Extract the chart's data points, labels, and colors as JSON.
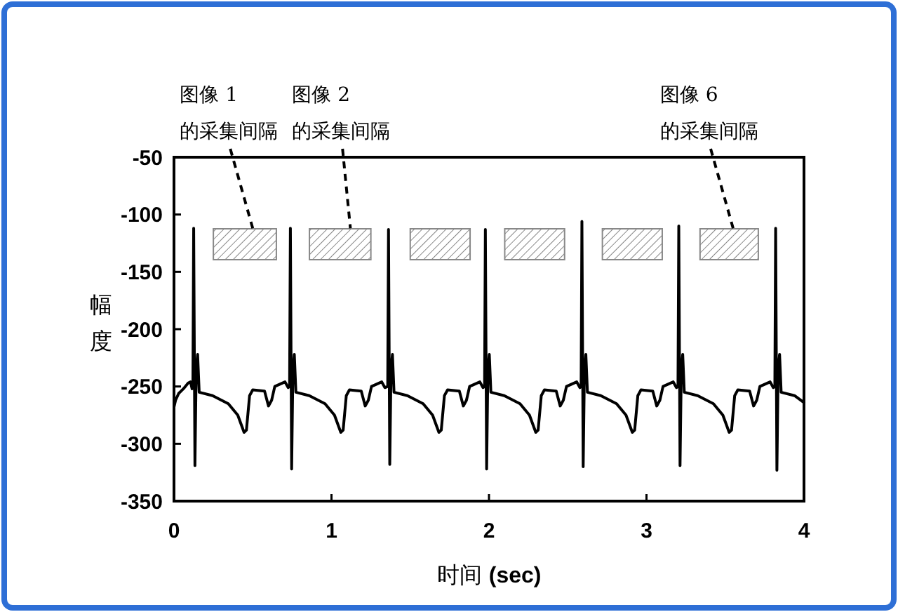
{
  "chart_data": {
    "type": "line",
    "xlabel": "时间 (sec)",
    "ylabel": "幅度",
    "xlim": [
      0,
      4
    ],
    "xticks": [
      0,
      1,
      2,
      3,
      4
    ],
    "ylim": [
      -350,
      -50
    ],
    "yticks": [
      -350,
      -300,
      -250,
      -200,
      -150,
      -100,
      -50
    ],
    "grid": false,
    "marker": "none",
    "line_style": "solid",
    "series": [
      {
        "color": "#000000",
        "x": [
          0,
          0.01,
          0.03,
          0.06,
          0.09,
          0.105,
          0.115,
          0.12,
          0.125,
          0.133,
          0.141,
          0.15,
          0.16,
          0.245,
          0.345,
          0.405,
          0.445,
          0.46,
          0.48,
          0.5,
          0.575,
          0.6,
          0.62,
          0.64,
          0.705,
          0.725,
          0.734,
          0.739,
          0.747,
          0.755,
          0.764,
          0.774,
          0.859,
          0.959,
          1.019,
          1.059,
          1.074,
          1.094,
          1.114,
          1.189,
          1.214,
          1.234,
          1.254,
          1.319,
          1.339,
          1.357,
          1.362,
          1.37,
          1.378,
          1.387,
          1.397,
          1.482,
          1.582,
          1.642,
          1.682,
          1.697,
          1.717,
          1.737,
          1.812,
          1.837,
          1.857,
          1.877,
          1.942,
          1.962,
          1.972,
          1.977,
          1.985,
          1.993,
          2.002,
          2.012,
          2.097,
          2.197,
          2.257,
          2.297,
          2.312,
          2.332,
          2.352,
          2.427,
          2.452,
          2.472,
          2.492,
          2.557,
          2.577,
          2.585,
          2.59,
          2.598,
          2.606,
          2.615,
          2.625,
          2.71,
          2.81,
          2.87,
          2.91,
          2.925,
          2.945,
          2.965,
          3.04,
          3.065,
          3.085,
          3.105,
          3.17,
          3.19,
          3.2,
          3.205,
          3.213,
          3.221,
          3.23,
          3.24,
          3.325,
          3.425,
          3.485,
          3.525,
          3.54,
          3.56,
          3.58,
          3.655,
          3.68,
          3.7,
          3.72,
          3.785,
          3.805,
          3.815,
          3.82,
          3.828,
          3.836,
          3.845,
          3.855,
          3.94,
          4.0
        ],
        "values": [
          -268,
          -262,
          -256,
          -252,
          -247,
          -246,
          -252,
          -250,
          -112,
          -319,
          -235,
          -222,
          -255,
          -258,
          -265,
          -275,
          -290,
          -288,
          -258,
          -253,
          -254,
          -267,
          -262,
          -250,
          -246,
          -251,
          -250,
          -112,
          -322,
          -235,
          -222,
          -255,
          -258,
          -265,
          -275,
          -290,
          -288,
          -258,
          -253,
          -254,
          -267,
          -262,
          -250,
          -246,
          -251,
          -250,
          -113,
          -318,
          -235,
          -222,
          -255,
          -258,
          -265,
          -275,
          -290,
          -288,
          -258,
          -253,
          -254,
          -267,
          -262,
          -250,
          -246,
          -251,
          -250,
          -113,
          -322,
          -235,
          -222,
          -255,
          -258,
          -265,
          -275,
          -290,
          -288,
          -258,
          -253,
          -254,
          -267,
          -262,
          -250,
          -246,
          -251,
          -250,
          -106,
          -320,
          -235,
          -222,
          -255,
          -258,
          -265,
          -275,
          -290,
          -288,
          -258,
          -253,
          -254,
          -267,
          -262,
          -250,
          -246,
          -251,
          -250,
          -110,
          -319,
          -235,
          -222,
          -255,
          -258,
          -265,
          -275,
          -290,
          -288,
          -258,
          -253,
          -254,
          -267,
          -262,
          -250,
          -246,
          -251,
          -250,
          -112,
          -323,
          -235,
          -222,
          -255,
          -258,
          -264
        ]
      }
    ],
    "bands": [
      {
        "axis": "x",
        "from": 0.25,
        "to": 0.65,
        "color": "#888888"
      },
      {
        "axis": "x",
        "from": 0.86,
        "to": 1.25,
        "color": "#888888"
      },
      {
        "axis": "x",
        "from": 1.5,
        "to": 1.88,
        "color": "#888888"
      },
      {
        "axis": "x",
        "from": 2.1,
        "to": 2.48,
        "color": "#888888"
      },
      {
        "axis": "x",
        "from": 2.72,
        "to": 3.1,
        "color": "#888888"
      },
      {
        "axis": "x",
        "from": 3.34,
        "to": 3.71,
        "color": "#888888"
      }
    ],
    "annotations": [
      {
        "text": "图像 1\n的采集间隔",
        "x": 0.5,
        "y": -112
      },
      {
        "text": "图像 2\n的采集间隔",
        "x": 1.12,
        "y": -112
      },
      {
        "text": "图像 6\n的采集间隔",
        "x": 3.55,
        "y": -112
      }
    ]
  }
}
